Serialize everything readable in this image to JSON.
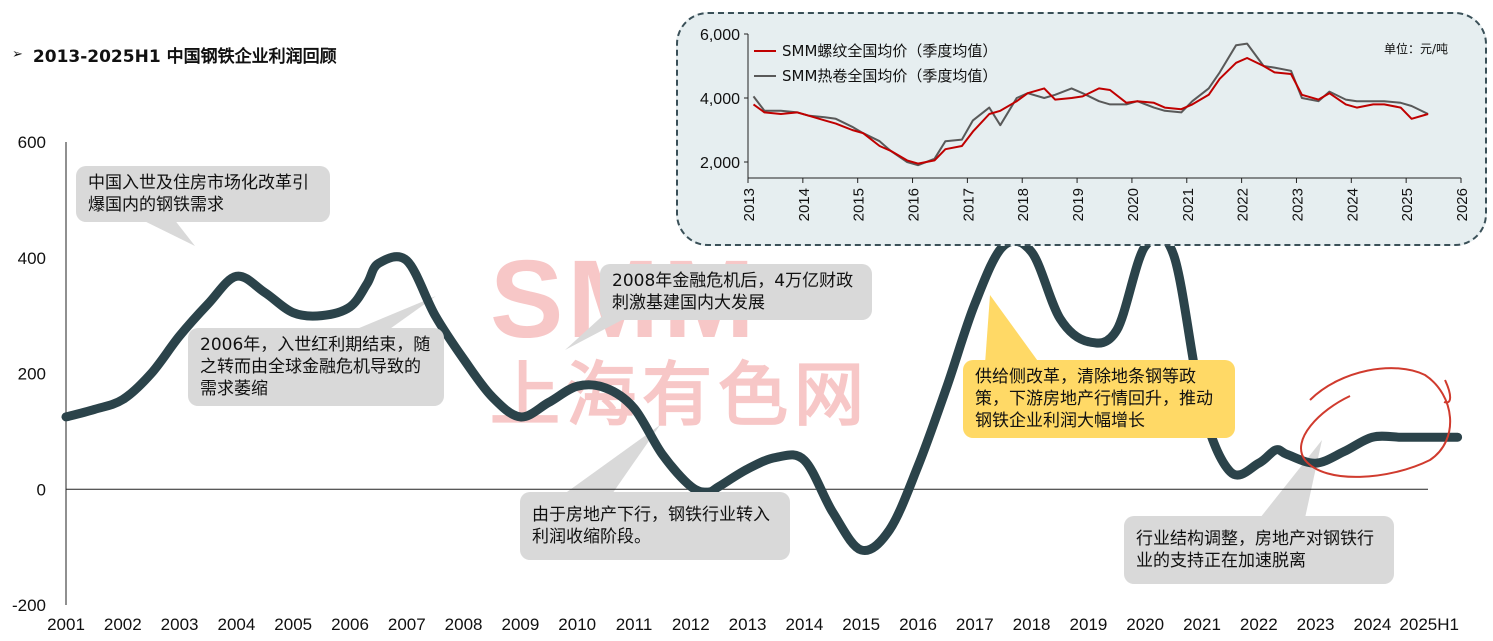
{
  "title": "2013-2025H1 中国钢铁企业利润回顾",
  "title_marker": "➢",
  "watermark": {
    "big": "SMM",
    "small": "上海有色网"
  },
  "colors": {
    "main_line": "#2b434a",
    "rebar": "#c00000",
    "hotcoil": "#595959",
    "circle": "#d03b2e"
  },
  "chart_data": [
    {
      "type": "line",
      "x_labels": [
        "2001",
        "2002",
        "2003",
        "2004",
        "2005",
        "2006",
        "2007",
        "2008",
        "2009",
        "2010",
        "2011",
        "2012",
        "2013",
        "2014",
        "2015",
        "2016",
        "2017",
        "2018",
        "2019",
        "2020",
        "2021",
        "2022",
        "2023",
        "2024",
        "2025H1"
      ],
      "ylim": [
        -200,
        600
      ],
      "y_ticks": [
        "600",
        "400",
        "200",
        "0",
        "-200"
      ],
      "y_tick_values": [
        600,
        400,
        200,
        0,
        -200
      ],
      "series": [
        {
          "x": [
            0,
            0.5,
            1,
            1.5,
            2,
            2.5,
            3,
            3.5,
            4,
            4.5,
            5,
            5.3,
            5.5,
            6,
            6.5,
            7,
            7.5,
            8,
            8.5,
            9,
            9.5,
            10,
            10.5,
            11,
            11.3,
            11.5,
            12,
            12.5,
            13,
            13.5,
            14,
            14.5,
            15,
            15.5,
            16,
            16.5,
            17,
            17.5,
            18,
            18.5,
            19,
            19.5,
            20,
            20.5,
            21,
            21.3,
            21.5,
            22,
            22.5,
            23,
            23.5,
            24,
            24.5
          ],
          "values": [
            125,
            138,
            155,
            200,
            265,
            320,
            368,
            340,
            305,
            300,
            315,
            355,
            390,
            395,
            300,
            225,
            160,
            125,
            150,
            178,
            175,
            140,
            60,
            5,
            -5,
            5,
            35,
            55,
            50,
            -40,
            -105,
            -70,
            40,
            175,
            320,
            420,
            410,
            295,
            255,
            275,
            420,
            405,
            145,
            30,
            45,
            68,
            60,
            45,
            65,
            90,
            90,
            90,
            90
          ]
        }
      ],
      "grid": false
    },
    {
      "type": "line",
      "xlim": [
        2013,
        2026
      ],
      "x_ticks": [
        "2013",
        "2014",
        "2015",
        "2016",
        "2017",
        "2018",
        "2019",
        "2020",
        "2021",
        "2022",
        "2023",
        "2024",
        "2025",
        "2026"
      ],
      "ylim": [
        1500,
        6000
      ],
      "y_ticks": [
        "6,000",
        "4,000",
        "2,000"
      ],
      "y_tick_values": [
        6000,
        4000,
        2000
      ],
      "unit": "单位：元/吨",
      "grid": false,
      "legend_position": "top-left",
      "series": [
        {
          "name": "SMM螺纹全国均价（季度均值）",
          "color": "#c00000",
          "x": [
            2013.1,
            2013.3,
            2013.6,
            2013.9,
            2014.1,
            2014.4,
            2014.6,
            2014.9,
            2015.1,
            2015.4,
            2015.6,
            2015.9,
            2016.1,
            2016.4,
            2016.6,
            2016.9,
            2017.1,
            2017.4,
            2017.6,
            2017.9,
            2018.1,
            2018.4,
            2018.6,
            2018.9,
            2019.1,
            2019.4,
            2019.6,
            2019.9,
            2020.1,
            2020.4,
            2020.6,
            2020.9,
            2021.1,
            2021.4,
            2021.6,
            2021.9,
            2022.1,
            2022.4,
            2022.6,
            2022.9,
            2023.1,
            2023.4,
            2023.6,
            2023.9,
            2024.1,
            2024.4,
            2024.6,
            2024.9,
            2025.1,
            2025.4
          ],
          "values": [
            3800,
            3550,
            3500,
            3550,
            3450,
            3300,
            3200,
            3000,
            2900,
            2500,
            2350,
            2050,
            1950,
            2050,
            2400,
            2500,
            2950,
            3500,
            3600,
            3900,
            4150,
            4300,
            3950,
            4000,
            4050,
            4300,
            4250,
            3850,
            3900,
            3850,
            3700,
            3650,
            3800,
            4100,
            4600,
            5100,
            5250,
            5000,
            4800,
            4750,
            4100,
            3950,
            4150,
            3800,
            3700,
            3800,
            3800,
            3700,
            3350,
            3500
          ]
        },
        {
          "name": "SMM热卷全国均价（季度均值）",
          "color": "#595959",
          "x": [
            2013.1,
            2013.3,
            2013.6,
            2013.9,
            2014.1,
            2014.4,
            2014.6,
            2014.9,
            2015.1,
            2015.4,
            2015.6,
            2015.9,
            2016.1,
            2016.4,
            2016.6,
            2016.9,
            2017.1,
            2017.4,
            2017.6,
            2017.9,
            2018.1,
            2018.4,
            2018.6,
            2018.9,
            2019.1,
            2019.4,
            2019.6,
            2019.9,
            2020.1,
            2020.4,
            2020.6,
            2020.9,
            2021.1,
            2021.4,
            2021.6,
            2021.9,
            2022.1,
            2022.4,
            2022.6,
            2022.9,
            2023.1,
            2023.4,
            2023.6,
            2023.9,
            2024.1,
            2024.4,
            2024.6,
            2024.9,
            2025.1,
            2025.4
          ],
          "values": [
            4050,
            3600,
            3600,
            3550,
            3450,
            3400,
            3350,
            3100,
            2900,
            2650,
            2350,
            2000,
            1900,
            2100,
            2650,
            2700,
            3300,
            3700,
            3150,
            4000,
            4150,
            4000,
            4100,
            4300,
            4150,
            3900,
            3800,
            3800,
            3900,
            3700,
            3600,
            3550,
            3900,
            4300,
            4800,
            5650,
            5700,
            5000,
            4950,
            4850,
            4000,
            3900,
            4200,
            3950,
            3900,
            3900,
            3900,
            3850,
            3750,
            3500
          ]
        }
      ]
    }
  ],
  "callouts": {
    "c1": "中国入世及住房市场化改革引爆国内的钢铁需求",
    "c2": "2006年，入世红利期结束，随之转而由全球金融危机导致的需求萎缩",
    "c3": "2008年金融危机后，4万亿财政刺激基建国内大发展",
    "c4": "由于房地产下行，钢铁行业转入利润收缩阶段。",
    "c5": "供给侧改革，清除地条钢等政策，下游房地产行情回升，推动钢铁企业利润大幅增长",
    "c6": "行业结构调整，房地产对钢铁行业的支持正在加速脱离"
  }
}
